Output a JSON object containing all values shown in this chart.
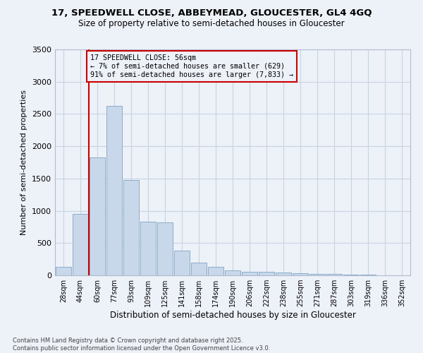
{
  "title_line1": "17, SPEEDWELL CLOSE, ABBEYMEAD, GLOUCESTER, GL4 4GQ",
  "title_line2": "Size of property relative to semi-detached houses in Gloucester",
  "xlabel": "Distribution of semi-detached houses by size in Gloucester",
  "ylabel": "Number of semi-detached properties",
  "footer_line1": "Contains HM Land Registry data © Crown copyright and database right 2025.",
  "footer_line2": "Contains public sector information licensed under the Open Government Licence v3.0.",
  "bar_labels": [
    "28sqm",
    "44sqm",
    "60sqm",
    "77sqm",
    "93sqm",
    "109sqm",
    "125sqm",
    "141sqm",
    "158sqm",
    "174sqm",
    "190sqm",
    "206sqm",
    "222sqm",
    "238sqm",
    "255sqm",
    "271sqm",
    "287sqm",
    "303sqm",
    "319sqm",
    "336sqm",
    "352sqm"
  ],
  "bar_values": [
    130,
    950,
    1830,
    2630,
    1480,
    830,
    820,
    380,
    200,
    130,
    80,
    60,
    50,
    40,
    30,
    20,
    20,
    15,
    10,
    5,
    5
  ],
  "bar_color": "#c8d8ea",
  "bar_edge_color": "#8aacc8",
  "grid_color": "#c8d4e4",
  "background_color": "#edf1f8",
  "annotation_box_edge": "#cc0000",
  "vline_color": "#cc0000",
  "vline_x_idx": 1,
  "annotation_text_line1": "17 SPEEDWELL CLOSE: 56sqm",
  "annotation_text_line2": "← 7% of semi-detached houses are smaller (629)",
  "annotation_text_line3": "91% of semi-detached houses are larger (7,833) →",
  "ylim": [
    0,
    3500
  ],
  "yticks": [
    0,
    500,
    1000,
    1500,
    2000,
    2500,
    3000,
    3500
  ]
}
